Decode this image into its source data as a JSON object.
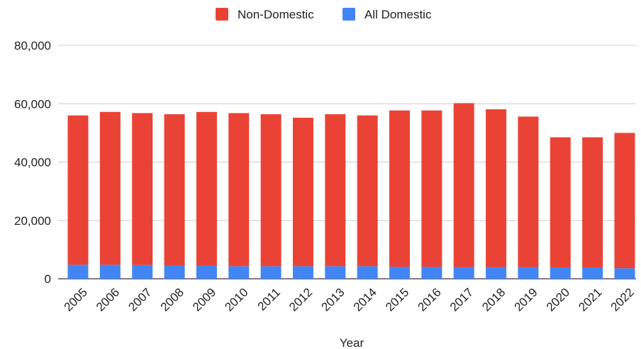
{
  "chart_data": {
    "type": "bar",
    "stacked": true,
    "title": "",
    "xlabel": "Year",
    "ylabel": "",
    "ylim": [
      0,
      80000
    ],
    "yticks": [
      0,
      20000,
      40000,
      60000,
      80000
    ],
    "ytick_labels": [
      "0",
      "20,000",
      "40,000",
      "60,000",
      "80,000"
    ],
    "grid": true,
    "legend_position": "top",
    "categories": [
      "2005",
      "2006",
      "2007",
      "2008",
      "2009",
      "2010",
      "2011",
      "2012",
      "2013",
      "2014",
      "2015",
      "2016",
      "2017",
      "2018",
      "2019",
      "2020",
      "2021",
      "2022"
    ],
    "series": [
      {
        "name": "All Domestic",
        "color": "#4285f4",
        "values": [
          4800,
          4800,
          4700,
          4400,
          4400,
          4300,
          4300,
          4300,
          4300,
          4300,
          4100,
          4100,
          4000,
          4000,
          4000,
          3900,
          3900,
          3600
        ]
      },
      {
        "name": "Non-Domestic",
        "color": "#ea4335",
        "values": [
          51200,
          52400,
          52100,
          52000,
          52800,
          52500,
          52100,
          50900,
          52100,
          51700,
          53600,
          53600,
          56200,
          54100,
          51600,
          44600,
          44600,
          46400
        ]
      }
    ],
    "legend_order": [
      "Non-Domestic",
      "All Domestic"
    ]
  }
}
